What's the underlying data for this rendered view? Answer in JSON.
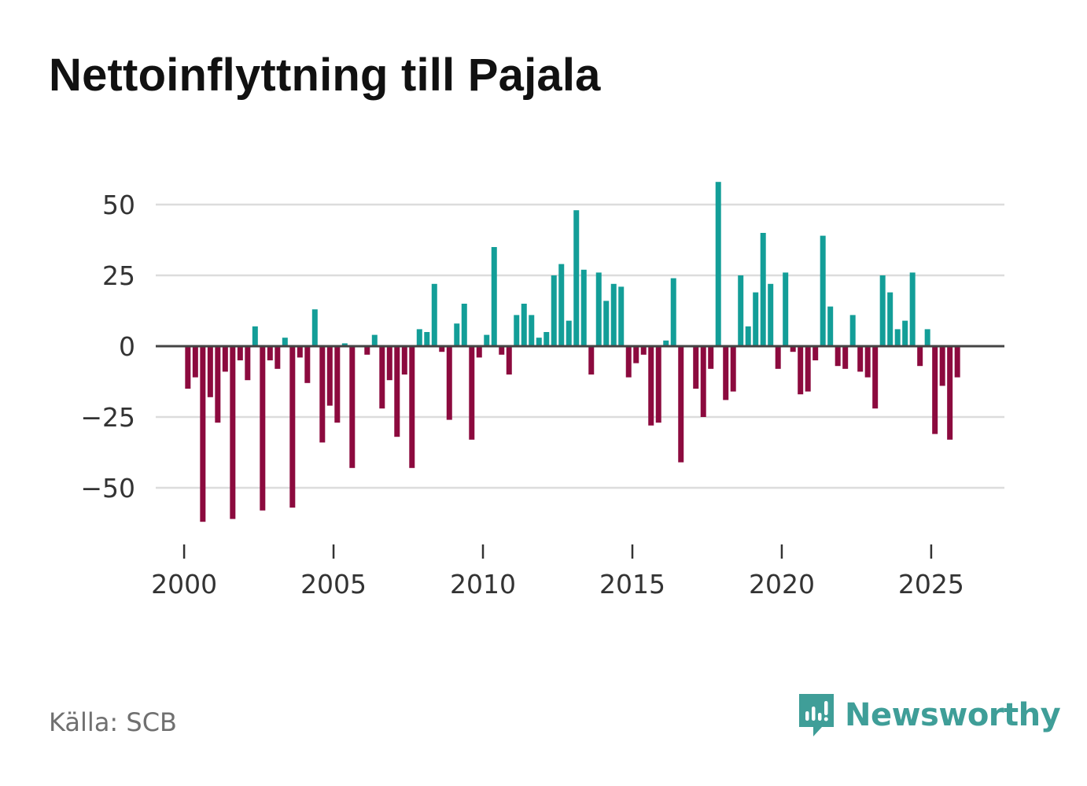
{
  "title": "Nettoinflyttning till Pajala",
  "source": "Källa: SCB",
  "brand": {
    "name": "Newsworthy",
    "color": "#3f9e98"
  },
  "chart_data": {
    "type": "bar",
    "title": "Nettoinflyttning till Pajala",
    "xlabel": "",
    "ylabel": "",
    "frequency": "quarterly",
    "start": "2000 Q1",
    "xlim": [
      1999.05,
      2027.45
    ],
    "ylim": [
      -70,
      60
    ],
    "x_ticks": [
      2000,
      2005,
      2010,
      2015,
      2020,
      2025
    ],
    "y_ticks": [
      50,
      25,
      0,
      -25,
      -50
    ],
    "y_tick_labels": [
      "50",
      "25",
      "0",
      "−25",
      "−50"
    ],
    "grid": true,
    "positive_color": "#139e98",
    "negative_color": "#8c0a3e",
    "x": [
      2000.0,
      2000.25,
      2000.5,
      2000.75,
      2001.0,
      2001.25,
      2001.5,
      2001.75,
      2002.0,
      2002.25,
      2002.5,
      2002.75,
      2003.0,
      2003.25,
      2003.5,
      2003.75,
      2004.0,
      2004.25,
      2004.5,
      2004.75,
      2005.0,
      2005.25,
      2005.5,
      2005.75,
      2006.0,
      2006.25,
      2006.5,
      2006.75,
      2007.0,
      2007.25,
      2007.5,
      2007.75,
      2008.0,
      2008.25,
      2008.5,
      2008.75,
      2009.0,
      2009.25,
      2009.5,
      2009.75,
      2010.0,
      2010.25,
      2010.5,
      2010.75,
      2011.0,
      2011.25,
      2011.5,
      2011.75,
      2012.0,
      2012.25,
      2012.5,
      2012.75,
      2013.0,
      2013.25,
      2013.5,
      2013.75,
      2014.0,
      2014.25,
      2014.5,
      2014.75,
      2015.0,
      2015.25,
      2015.5,
      2015.75,
      2016.0,
      2016.25,
      2016.5,
      2016.75,
      2017.0,
      2017.25,
      2017.5,
      2017.75,
      2018.0,
      2018.25,
      2018.5,
      2018.75,
      2019.0,
      2019.25,
      2019.5,
      2019.75,
      2020.0,
      2020.25,
      2020.5,
      2020.75,
      2021.0,
      2021.25,
      2021.5,
      2021.75,
      2022.0,
      2022.25,
      2022.5,
      2022.75,
      2023.0,
      2023.25,
      2023.5,
      2023.75,
      2024.0,
      2024.25,
      2024.5,
      2024.75,
      2025.0,
      2025.25,
      2025.5,
      2025.75
    ],
    "values": [
      -15,
      -11,
      -62,
      -18,
      -27,
      -9,
      -61,
      -5,
      -12,
      7,
      -58,
      -5,
      -8,
      3,
      -57,
      -4,
      -13,
      13,
      -34,
      -21,
      -27,
      1,
      -43,
      0,
      -3,
      4,
      -22,
      -12,
      -32,
      -10,
      -43,
      6,
      5,
      22,
      -2,
      -26,
      8,
      15,
      -33,
      -4,
      4,
      35,
      -3,
      -10,
      11,
      15,
      11,
      3,
      5,
      25,
      29,
      9,
      48,
      27,
      -10,
      26,
      16,
      22,
      21,
      -11,
      -6,
      -3,
      -28,
      -27,
      2,
      24,
      -41,
      0,
      -15,
      -25,
      -8,
      58,
      -19,
      -16,
      25,
      7,
      19,
      40,
      22,
      -8,
      26,
      -2,
      -17,
      -16,
      -5,
      39,
      14,
      -7,
      -8,
      11,
      -9,
      -11,
      -22,
      25,
      19,
      6,
      9,
      26,
      -7,
      6,
      -31,
      -14,
      -33,
      -11
    ]
  }
}
